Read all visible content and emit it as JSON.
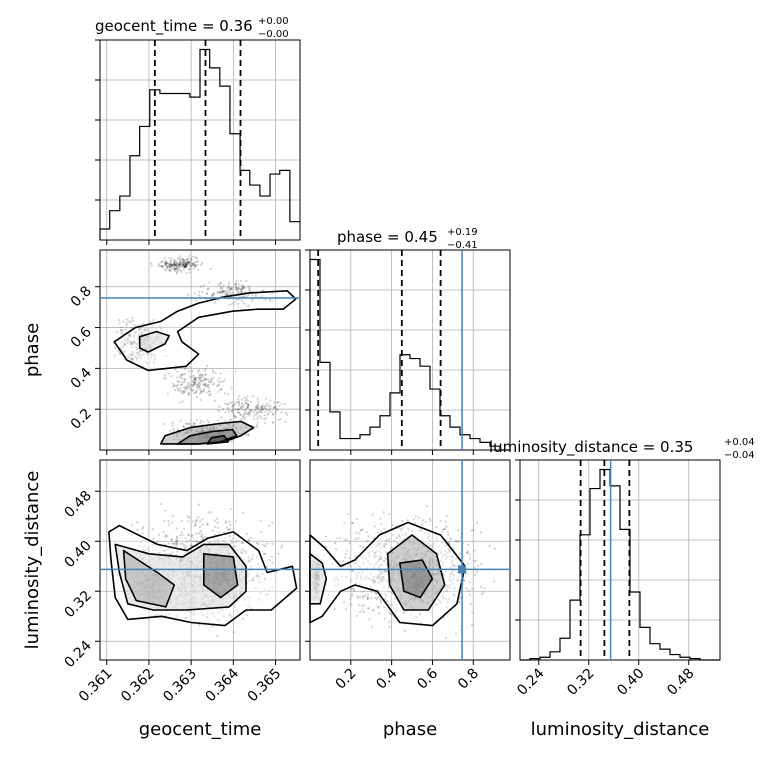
{
  "chart_data": {
    "type": "corner",
    "parameters": [
      "geocent_time",
      "phase",
      "luminosity_distance"
    ],
    "truths": {
      "phase": 0.745,
      "luminosity_distance": 0.355
    },
    "titles": [
      {
        "param": "geocent_time",
        "text": "geocent_time = 0.36",
        "sup": "+0.00",
        "sub": "−0.00"
      },
      {
        "param": "phase",
        "text": "phase = 0.45",
        "sup": "+0.19",
        "sub": "−0.41"
      },
      {
        "param": "luminosity_distance",
        "text": "luminosity_distance = 0.35",
        "sup": "+0.04",
        "sub": "−0.04"
      }
    ],
    "axes": {
      "geocent_time": {
        "label": "geocent_time",
        "range": [
          0.36084,
          0.36558
        ],
        "ticks": [
          "0.361",
          "0.362",
          "0.363",
          "0.364",
          "0.365"
        ]
      },
      "phase": {
        "label": "phase",
        "range": [
          0.0,
          0.98
        ],
        "ticks": [
          "0.2",
          "0.4",
          "0.6",
          "0.8"
        ]
      },
      "luminosity_distance": {
        "label": "luminosity_distance",
        "range": [
          0.21,
          0.53
        ],
        "ticks": [
          "0.24",
          "0.32",
          "0.40",
          "0.48"
        ]
      }
    },
    "marginals": [
      {
        "param": "geocent_time",
        "edges": [
          0.36084,
          0.36107,
          0.36131,
          0.36155,
          0.36178,
          0.36202,
          0.36226,
          0.36249,
          0.36273,
          0.36297,
          0.36321,
          0.36344,
          0.36368,
          0.36392,
          0.36416,
          0.36439,
          0.36463,
          0.36487,
          0.3651,
          0.36534,
          0.36558
        ],
        "counts": [
          3,
          8,
          12,
          23,
          31,
          41,
          40,
          40,
          40,
          39,
          52,
          47,
          42,
          29,
          19,
          15,
          12,
          18,
          19,
          5
        ],
        "quantiles": [
          0.36214,
          0.36334,
          0.36417
        ]
      },
      {
        "param": "phase",
        "edges": [
          0.0,
          0.049,
          0.098,
          0.147,
          0.196,
          0.245,
          0.294,
          0.343,
          0.392,
          0.441,
          0.49,
          0.539,
          0.588,
          0.637,
          0.686,
          0.735,
          0.784,
          0.833,
          0.882,
          0.931,
          0.98
        ],
        "counts": [
          50,
          23,
          10,
          3,
          3,
          4,
          6,
          9,
          15,
          25,
          24,
          22,
          16,
          9,
          6,
          4,
          3,
          2,
          1,
          0
        ],
        "quantiles": [
          0.04,
          0.45,
          0.64
        ]
      },
      {
        "param": "luminosity_distance",
        "edges": [
          0.21,
          0.226,
          0.242,
          0.258,
          0.274,
          0.29,
          0.306,
          0.322,
          0.338,
          0.354,
          0.37,
          0.386,
          0.402,
          0.418,
          0.434,
          0.45,
          0.466,
          0.482,
          0.498,
          0.514,
          0.53
        ],
        "counts": [
          0,
          0.5,
          1,
          3,
          8,
          22,
          46,
          63,
          70,
          64,
          48,
          25,
          12,
          6,
          4,
          2,
          1,
          0.5,
          0,
          0
        ],
        "quantiles": [
          0.307,
          0.345,
          0.385
        ]
      }
    ],
    "joint": [
      {
        "x": "geocent_time",
        "y": "phase",
        "contours": [
          [
            [
              0.36228,
              0.63
            ],
            [
              0.36268,
              0.68
            ],
            [
              0.36318,
              0.72
            ],
            [
              0.36378,
              0.75
            ],
            [
              0.36438,
              0.77
            ],
            [
              0.36528,
              0.78
            ],
            [
              0.36548,
              0.74
            ],
            [
              0.36518,
              0.69
            ],
            [
              0.36458,
              0.69
            ],
            [
              0.36398,
              0.68
            ],
            [
              0.36318,
              0.65
            ],
            [
              0.36268,
              0.58
            ],
            [
              0.36278,
              0.53
            ],
            [
              0.36318,
              0.47
            ],
            [
              0.36288,
              0.41
            ],
            [
              0.36198,
              0.39
            ],
            [
              0.36148,
              0.44
            ],
            [
              0.36118,
              0.53
            ],
            [
              0.36168,
              0.6
            ]
          ],
          [
            [
              0.36178,
              0.555
            ],
            [
              0.36218,
              0.58
            ],
            [
              0.36248,
              0.56
            ],
            [
              0.36238,
              0.52
            ],
            [
              0.36198,
              0.48
            ],
            [
              0.36178,
              0.5
            ]
          ],
          [
            [
              0.36228,
              0.03
            ],
            [
              0.36238,
              0.07
            ],
            [
              0.36298,
              0.11
            ],
            [
              0.36368,
              0.13
            ],
            [
              0.36418,
              0.14
            ],
            [
              0.36448,
              0.11
            ],
            [
              0.36418,
              0.07
            ],
            [
              0.36378,
              0.04
            ],
            [
              0.36318,
              0.03
            ]
          ],
          [
            [
              0.36268,
              0.03
            ],
            [
              0.36298,
              0.07
            ],
            [
              0.36348,
              0.09
            ],
            [
              0.36398,
              0.1
            ],
            [
              0.36408,
              0.07
            ],
            [
              0.36368,
              0.04
            ],
            [
              0.36318,
              0.03
            ]
          ],
          [
            [
              0.36338,
              0.03
            ],
            [
              0.36348,
              0.06
            ],
            [
              0.36378,
              0.07
            ],
            [
              0.36388,
              0.04
            ]
          ]
        ],
        "samples": [
          {
            "x0": 0.36198,
            "x1": 0.36348,
            "y0": 0.86,
            "y1": 0.96,
            "n": 200
          },
          {
            "x0": 0.36278,
            "x1": 0.36518,
            "y0": 0.68,
            "y1": 0.86,
            "n": 180
          },
          {
            "x0": 0.3609,
            "x1": 0.36258,
            "y0": 0.38,
            "y1": 0.68,
            "n": 240
          },
          {
            "x0": 0.36208,
            "x1": 0.36418,
            "y0": 0.22,
            "y1": 0.44,
            "n": 180
          },
          {
            "x0": 0.36338,
            "x1": 0.36555,
            "y0": 0.1,
            "y1": 0.3,
            "n": 170
          },
          {
            "x0": 0.36218,
            "x1": 0.36458,
            "y0": 0.02,
            "y1": 0.16,
            "n": 260
          }
        ]
      },
      {
        "x": "geocent_time",
        "y": "luminosity_distance",
        "contours": [
          [
            [
              0.36105,
              0.415
            ],
            [
              0.3613,
              0.425
            ],
            [
              0.3622,
              0.395
            ],
            [
              0.3629,
              0.385
            ],
            [
              0.3634,
              0.405
            ],
            [
              0.364,
              0.415
            ],
            [
              0.3646,
              0.385
            ],
            [
              0.3648,
              0.35
            ],
            [
              0.3654,
              0.36
            ],
            [
              0.3655,
              0.325
            ],
            [
              0.3649,
              0.29
            ],
            [
              0.3643,
              0.29
            ],
            [
              0.3638,
              0.265
            ],
            [
              0.363,
              0.27
            ],
            [
              0.3623,
              0.28
            ],
            [
              0.3615,
              0.275
            ],
            [
              0.3612,
              0.31
            ],
            [
              0.3611,
              0.37
            ]
          ],
          [
            [
              0.3612,
              0.395
            ],
            [
              0.362,
              0.38
            ],
            [
              0.3628,
              0.375
            ],
            [
              0.3633,
              0.395
            ],
            [
              0.3639,
              0.395
            ],
            [
              0.3643,
              0.36
            ],
            [
              0.3643,
              0.32
            ],
            [
              0.3639,
              0.295
            ],
            [
              0.3629,
              0.29
            ],
            [
              0.3621,
              0.29
            ],
            [
              0.3615,
              0.3
            ],
            [
              0.3613,
              0.35
            ]
          ],
          [
            [
              0.3614,
              0.385
            ],
            [
              0.3622,
              0.35
            ],
            [
              0.3626,
              0.33
            ],
            [
              0.3624,
              0.295
            ],
            [
              0.3617,
              0.305
            ],
            [
              0.36145,
              0.34
            ]
          ],
          [
            [
              0.3633,
              0.38
            ],
            [
              0.364,
              0.375
            ],
            [
              0.3641,
              0.33
            ],
            [
              0.3637,
              0.31
            ],
            [
              0.3633,
              0.33
            ]
          ]
        ],
        "samples": [
          {
            "x0": 0.361,
            "x1": 0.36555,
            "y0": 0.24,
            "y1": 0.47,
            "n": 900
          },
          {
            "x0": 0.3615,
            "x1": 0.3626,
            "y0": 0.29,
            "y1": 0.37,
            "n": 150
          },
          {
            "x0": 0.3634,
            "x1": 0.3641,
            "y0": 0.31,
            "y1": 0.38,
            "n": 100
          }
        ]
      },
      {
        "x": "phase",
        "y": "luminosity_distance",
        "contours": [
          [
            [
              0.0,
              0.41
            ],
            [
              0.07,
              0.39
            ],
            [
              0.15,
              0.36
            ],
            [
              0.22,
              0.37
            ],
            [
              0.34,
              0.41
            ],
            [
              0.48,
              0.43
            ],
            [
              0.64,
              0.41
            ],
            [
              0.76,
              0.36
            ],
            [
              0.72,
              0.3
            ],
            [
              0.6,
              0.265
            ],
            [
              0.44,
              0.27
            ],
            [
              0.33,
              0.32
            ],
            [
              0.22,
              0.33
            ],
            [
              0.15,
              0.32
            ],
            [
              0.06,
              0.28
            ],
            [
              0.0,
              0.27
            ]
          ],
          [
            [
              0.0,
              0.38
            ],
            [
              0.06,
              0.365
            ],
            [
              0.08,
              0.34
            ],
            [
              0.05,
              0.3
            ],
            [
              0.0,
              0.3
            ]
          ],
          [
            [
              0.38,
              0.38
            ],
            [
              0.5,
              0.41
            ],
            [
              0.62,
              0.38
            ],
            [
              0.66,
              0.33
            ],
            [
              0.58,
              0.29
            ],
            [
              0.46,
              0.29
            ],
            [
              0.39,
              0.33
            ]
          ],
          [
            [
              0.44,
              0.365
            ],
            [
              0.55,
              0.37
            ],
            [
              0.6,
              0.34
            ],
            [
              0.54,
              0.31
            ],
            [
              0.46,
              0.32
            ]
          ]
        ],
        "samples": [
          {
            "x0": 0.0,
            "x1": 0.97,
            "y0": 0.24,
            "y1": 0.47,
            "n": 900
          },
          {
            "x0": 0.0,
            "x1": 0.06,
            "y0": 0.3,
            "y1": 0.38,
            "n": 120
          },
          {
            "x0": 0.44,
            "x1": 0.6,
            "y0": 0.3,
            "y1": 0.37,
            "n": 100
          }
        ]
      }
    ]
  }
}
